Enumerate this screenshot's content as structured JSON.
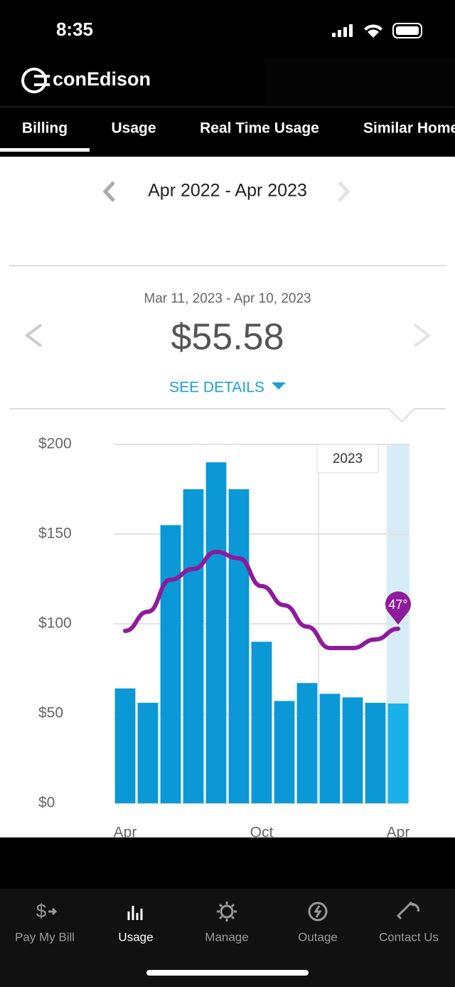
{
  "status_bar": {
    "time": "8:35"
  },
  "header": {
    "logo": "conEdison"
  },
  "tabs": [
    "Billing",
    "Usage",
    "Real Time Usage",
    "Similar Homes"
  ],
  "period": "Apr 2022 - Apr 2023",
  "bill": {
    "dates": "Mar 11, 2023 - Apr 10, 2023",
    "amount": "$55.58",
    "details": "SEE DETAILS"
  },
  "chart_data": {
    "type": "bar",
    "categories": [
      "Apr",
      null,
      null,
      null,
      null,
      null,
      "Oct",
      null,
      null,
      null,
      null,
      null,
      "Apr"
    ],
    "values": [
      64,
      56,
      155,
      175,
      190,
      175,
      90,
      57,
      67,
      61,
      59,
      56,
      55.58
    ],
    "color": "#0a99d6",
    "selected_color": "#1ab0ea",
    "ylim": [
      0,
      200
    ],
    "yticks": [
      {
        "value": 0,
        "label": "$0"
      },
      {
        "value": 50,
        "label": "$50"
      },
      {
        "value": 100,
        "label": "$100"
      },
      {
        "value": 150,
        "label": "$150"
      },
      {
        "value": 200,
        "label": "$200"
      }
    ],
    "grid": true,
    "annotation": "2023",
    "line": {
      "color": "#8e1a9c",
      "values": [
        46,
        55,
        70,
        75,
        83,
        80,
        67,
        58,
        48,
        38,
        38,
        42,
        47
      ],
      "value_labels": [
        null,
        null,
        null,
        null,
        null,
        null,
        null,
        null,
        null,
        null,
        null,
        null,
        "47°"
      ]
    }
  },
  "nav": [
    "Pay My Bill",
    "Usage",
    "Manage",
    "Outage",
    "Contact Us"
  ]
}
